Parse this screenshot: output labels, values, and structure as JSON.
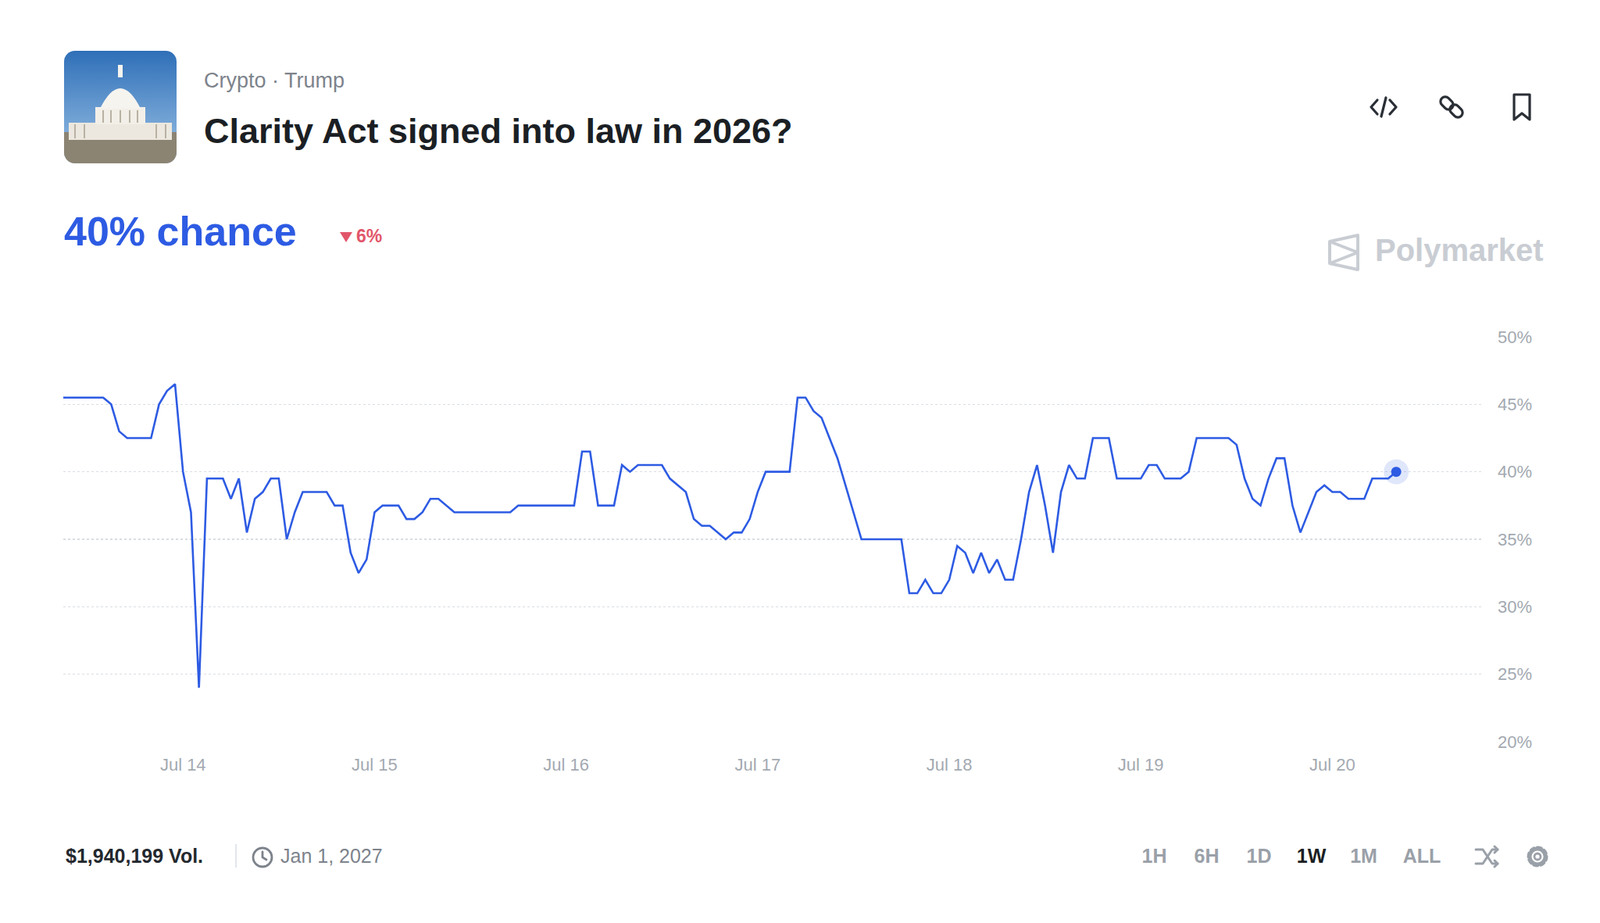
{
  "chart_data": {
    "type": "line",
    "breadcrumb": "Crypto · Trump",
    "title": "Clarity Act signed into law in 2026?",
    "headline": "40% chance",
    "change": "6%",
    "change_direction": "down",
    "source": "Polymarket",
    "volume": "$1,940,199 Vol.",
    "end_date": "Jan 1, 2027",
    "time_ranges": [
      "1H",
      "6H",
      "1D",
      "1W",
      "1M",
      "ALL"
    ],
    "active_time_range": "1W",
    "color": "#2d5be3",
    "grid": true,
    "ylim": [
      20,
      50
    ],
    "yticks": [
      {
        "value": 20,
        "label": "20%"
      },
      {
        "value": 25,
        "label": "25%"
      },
      {
        "value": 30,
        "label": "30%"
      },
      {
        "value": 35,
        "label": "35%"
      },
      {
        "value": 40,
        "label": "40%"
      },
      {
        "value": 45,
        "label": "45%"
      },
      {
        "value": 50,
        "label": "50%"
      }
    ],
    "categories": [
      null,
      null,
      null,
      null,
      null,
      null,
      null,
      null,
      null,
      null,
      null,
      null,
      null,
      null,
      null,
      "Jul 14",
      null,
      null,
      null,
      null,
      null,
      null,
      null,
      null,
      null,
      null,
      null,
      null,
      null,
      null,
      null,
      null,
      null,
      null,
      null,
      null,
      null,
      null,
      null,
      "Jul 15",
      null,
      null,
      null,
      null,
      null,
      null,
      null,
      null,
      null,
      null,
      null,
      null,
      null,
      null,
      null,
      null,
      null,
      null,
      null,
      null,
      null,
      null,
      null,
      "Jul 16",
      null,
      null,
      null,
      null,
      null,
      null,
      null,
      null,
      null,
      null,
      null,
      null,
      null,
      null,
      null,
      null,
      null,
      null,
      null,
      null,
      null,
      null,
      null,
      "Jul 17",
      null,
      null,
      null,
      null,
      null,
      null,
      null,
      null,
      null,
      null,
      null,
      null,
      null,
      null,
      null,
      null,
      null,
      null,
      null,
      null,
      null,
      null,
      null,
      "Jul 18",
      null,
      null,
      null,
      null,
      null,
      null,
      null,
      null,
      null,
      null,
      null,
      null,
      null,
      null,
      null,
      null,
      null,
      null,
      null,
      null,
      null,
      null,
      null,
      "Jul 19",
      null,
      null,
      null,
      null,
      null,
      null,
      null,
      null,
      null,
      null,
      null,
      null,
      null,
      null,
      null,
      null,
      null,
      null,
      null,
      null,
      null,
      null,
      null,
      "Jul 20",
      null,
      null,
      null,
      null,
      null,
      null,
      null,
      null
    ],
    "values": [
      45.5,
      45.5,
      45.5,
      45.5,
      45.5,
      45.5,
      45,
      43,
      42.5,
      42.5,
      42.5,
      42.5,
      45,
      46,
      46.5,
      40,
      37,
      24,
      39.5,
      39.5,
      39.5,
      38,
      39.5,
      35.5,
      38,
      38.5,
      39.5,
      39.5,
      35,
      37,
      38.5,
      38.5,
      38.5,
      38.5,
      37.5,
      37.5,
      34,
      32.5,
      33.5,
      37,
      37.5,
      37.5,
      37.5,
      36.5,
      36.5,
      37,
      38,
      38,
      37.5,
      37,
      37,
      37,
      37,
      37,
      37,
      37,
      37,
      37.5,
      37.5,
      37.5,
      37.5,
      37.5,
      37.5,
      37.5,
      37.5,
      41.5,
      41.5,
      37.5,
      37.5,
      37.5,
      40.5,
      40,
      40.5,
      40.5,
      40.5,
      40.5,
      39.5,
      39,
      38.5,
      36.5,
      36,
      36,
      35.5,
      35,
      35.5,
      35.5,
      36.5,
      38.5,
      40,
      40,
      40,
      40,
      45.5,
      45.5,
      44.5,
      44,
      42.5,
      41,
      39,
      37,
      35,
      35,
      35,
      35,
      35,
      35,
      31,
      31,
      32,
      31,
      31,
      32,
      34.5,
      34,
      32.5,
      34,
      32.5,
      33.5,
      32,
      32,
      35,
      38.5,
      40.5,
      37.5,
      34,
      38.5,
      40.5,
      39.5,
      39.5,
      42.5,
      42.5,
      42.5,
      39.5,
      39.5,
      39.5,
      39.5,
      40.5,
      40.5,
      39.5,
      39.5,
      39.5,
      40,
      42.5,
      42.5,
      42.5,
      42.5,
      42.5,
      42,
      39.5,
      38,
      37.5,
      39.5,
      41,
      41,
      37.5,
      35.5,
      37,
      38.5,
      39,
      38.5,
      38.5,
      38,
      38,
      38,
      39.5,
      39.5,
      39.5,
      40
    ]
  }
}
